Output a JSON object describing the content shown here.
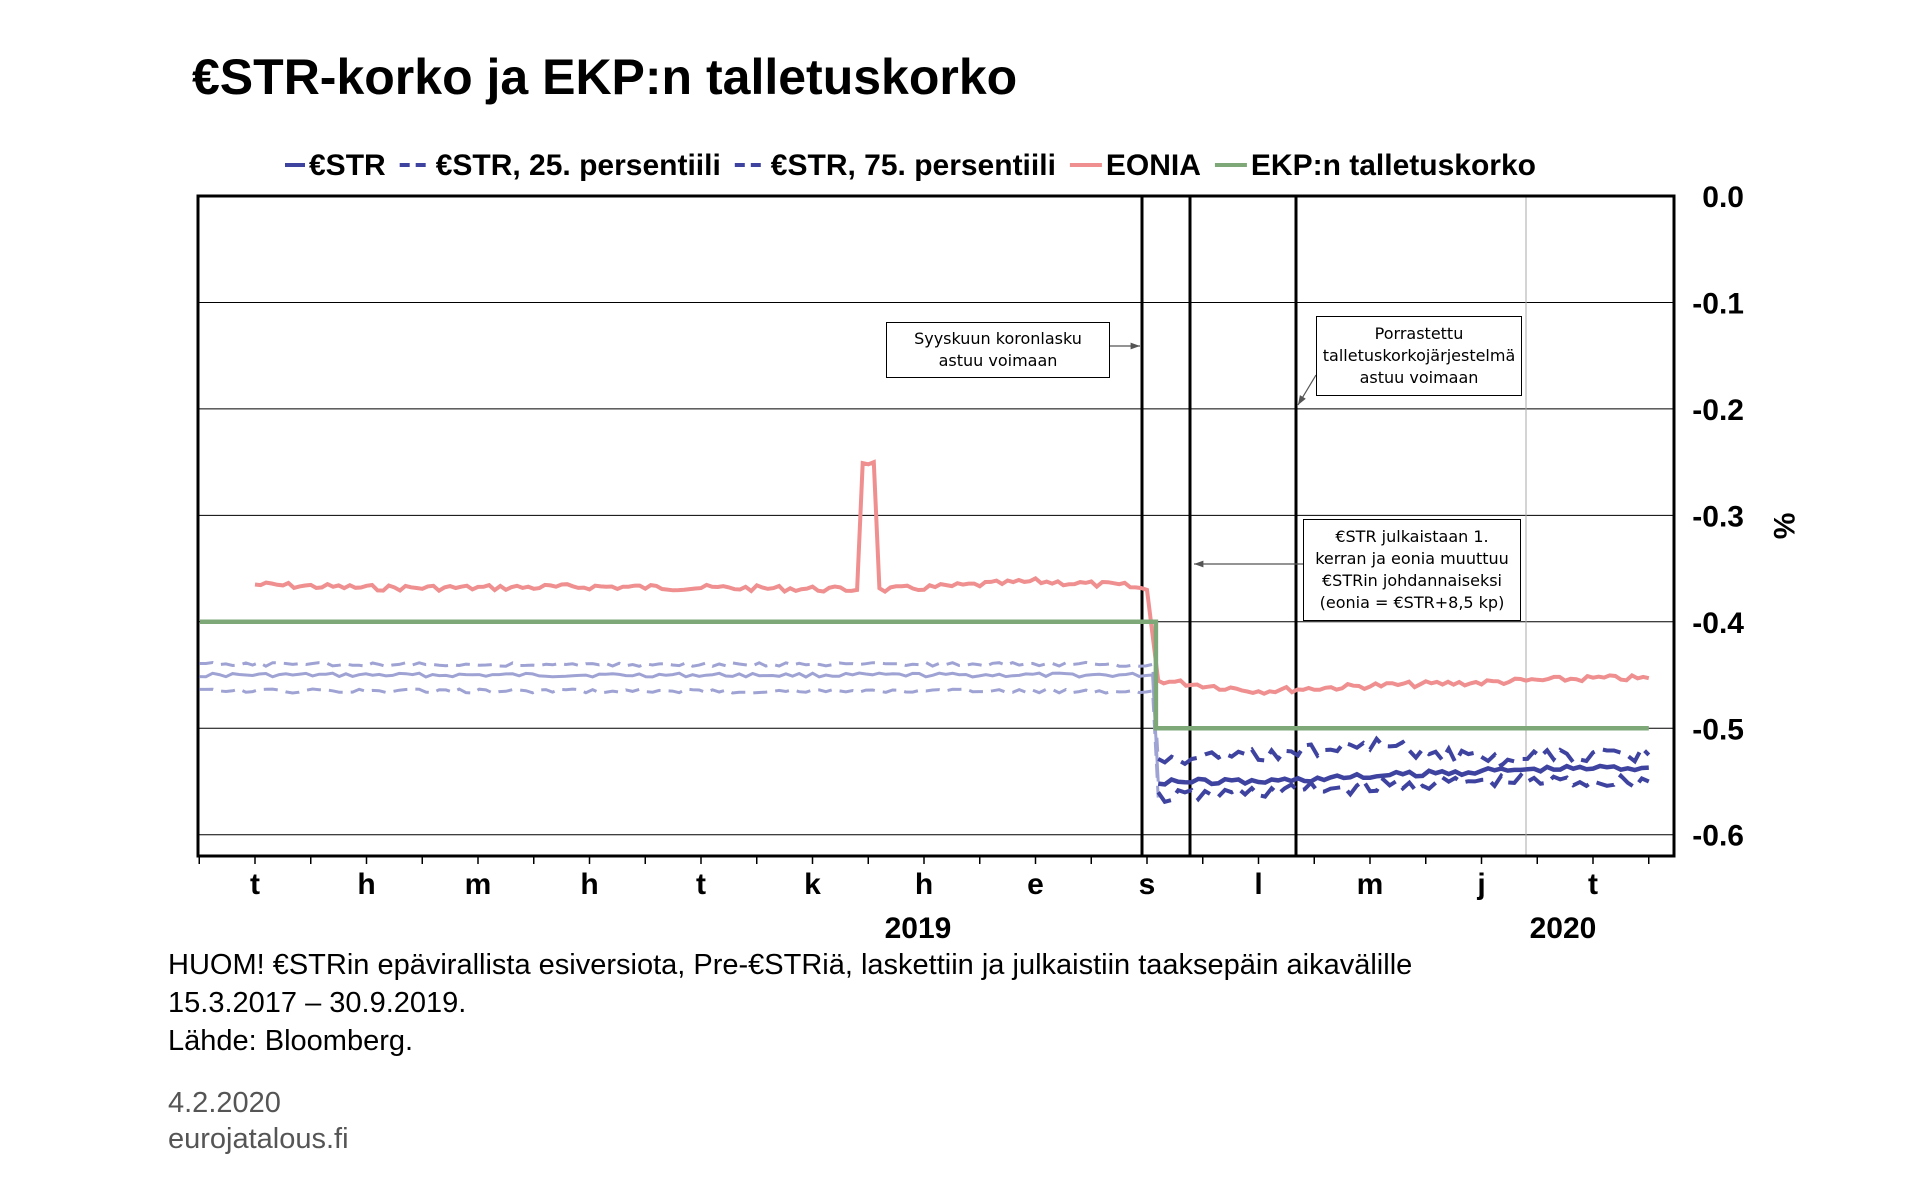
{
  "chart_data": {
    "type": "line",
    "title": "€STR-korko ja EKP:n talletuskorko",
    "ylabel": "%",
    "ylim": [
      -0.62,
      0.0
    ],
    "yticks": [
      "0.0",
      "-0.1",
      "-0.2",
      "-0.3",
      "-0.4",
      "-0.5",
      "-0.6"
    ],
    "ytick_values": [
      0.0,
      -0.1,
      -0.2,
      -0.3,
      -0.4,
      -0.5,
      -0.6
    ],
    "month_labels": [
      "t",
      "h",
      "m",
      "h",
      "t",
      "k",
      "h",
      "e",
      "s",
      "l",
      "m",
      "j",
      "t"
    ],
    "year_labels": [
      {
        "label": "2019",
        "month_index": 6
      },
      {
        "label": "2020",
        "month_index": 12
      }
    ],
    "grid": true,
    "legend_position": "top",
    "series": [
      {
        "name": "€STR",
        "color": "#3f43a0",
        "style": "solid",
        "pre_value": -0.45,
        "post_points": [
          [
            8.1,
            -0.55
          ],
          [
            9.0,
            -0.55
          ],
          [
            10.0,
            -0.545
          ],
          [
            11.0,
            -0.54
          ],
          [
            12.0,
            -0.537
          ],
          [
            12.5,
            -0.537
          ]
        ]
      },
      {
        "name": "€STR, 25. persentiili",
        "color": "#3f43a0",
        "style": "dashed",
        "pre_value": -0.465,
        "post_points": [
          [
            8.1,
            -0.565
          ],
          [
            9.0,
            -0.56
          ],
          [
            10.0,
            -0.555
          ],
          [
            11.0,
            -0.55
          ],
          [
            12.0,
            -0.55
          ],
          [
            12.5,
            -0.55
          ]
        ]
      },
      {
        "name": "€STR, 75. persentiili",
        "color": "#3f43a0",
        "style": "dashed",
        "pre_value": -0.44,
        "post_points": [
          [
            8.1,
            -0.53
          ],
          [
            9.0,
            -0.525
          ],
          [
            10.0,
            -0.515
          ],
          [
            11.0,
            -0.53
          ],
          [
            12.0,
            -0.525
          ],
          [
            12.5,
            -0.525
          ]
        ]
      },
      {
        "name": "EONIA",
        "color": "#ef8f8f",
        "style": "solid",
        "points": [
          [
            0,
            -0.365
          ],
          [
            1,
            -0.368
          ],
          [
            2,
            -0.368
          ],
          [
            3,
            -0.367
          ],
          [
            4,
            -0.368
          ],
          [
            5,
            -0.369
          ],
          [
            5.4,
            -0.37
          ],
          [
            5.45,
            -0.25
          ],
          [
            5.55,
            -0.25
          ],
          [
            5.6,
            -0.37
          ],
          [
            6,
            -0.368
          ],
          [
            7,
            -0.362
          ],
          [
            7.8,
            -0.366
          ],
          [
            8.0,
            -0.37
          ],
          [
            8.1,
            -0.455
          ],
          [
            9.0,
            -0.465
          ],
          [
            10.0,
            -0.46
          ],
          [
            11.0,
            -0.457
          ],
          [
            12.0,
            -0.453
          ],
          [
            12.5,
            -0.453
          ]
        ]
      },
      {
        "name": "EKP:n talletuskorko",
        "color": "#7ea878",
        "style": "solid",
        "points": [
          [
            0,
            -0.4
          ],
          [
            8.08,
            -0.4
          ],
          [
            8.08,
            -0.5
          ],
          [
            12.5,
            -0.5
          ]
        ]
      }
    ],
    "annotations": [
      {
        "text": "Syyskuun koronlasku astuu voimaan"
      },
      {
        "text": "Porrastettu talletuskorkojärjestelmä astuu voimaan"
      },
      {
        "text": "€STR julkaistaan 1. kerran ja eonia muuttuu €STRin johdannaiseksi (eonia = €STR+8,5 kp)"
      }
    ]
  },
  "notes": {
    "line1": "HUOM! €STRin epävirallista esiversiota, Pre-€STRiä, laskettiin ja julkaistiin taaksepäin aikavälille",
    "line2": "15.3.2017 – 30.9.2019.",
    "source": "Lähde: Bloomberg."
  },
  "footer": {
    "date": "4.2.2020",
    "site": "eurojatalous.fi"
  }
}
